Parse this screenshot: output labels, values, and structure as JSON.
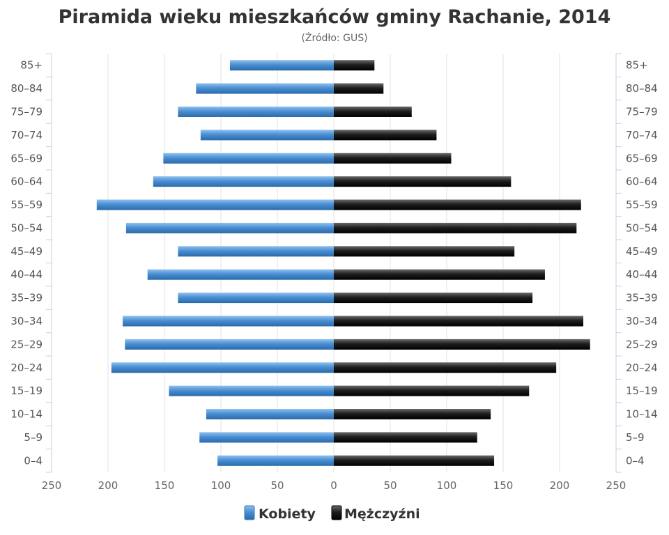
{
  "chart_data": {
    "type": "bar",
    "orientation": "horizontal",
    "layout": "population-pyramid",
    "title": "Piramida wieku mieszkańców gminy Rachanie, 2014",
    "subtitle": "(Źródło: GUS)",
    "categories": [
      "85+",
      "80–84",
      "75–79",
      "70–74",
      "65–69",
      "60–64",
      "55–59",
      "50–54",
      "45–49",
      "40–44",
      "35–39",
      "30–34",
      "25–29",
      "20–24",
      "15–19",
      "10–14",
      "5–9",
      "0–4"
    ],
    "x_ticks": [
      "250",
      "200",
      "150",
      "100",
      "50",
      "0",
      "50",
      "100",
      "150",
      "200",
      "250"
    ],
    "xlim": [
      -250,
      250
    ],
    "grid": true,
    "legend_position": "bottom",
    "series": [
      {
        "name": "Kobiety",
        "color": "#4a8fd4",
        "side": "left",
        "values": [
          92,
          122,
          138,
          118,
          151,
          160,
          210,
          184,
          138,
          165,
          138,
          187,
          185,
          197,
          146,
          113,
          119,
          103
        ]
      },
      {
        "name": "Mężczyźni",
        "color": "#1a1a1a",
        "side": "right",
        "values": [
          36,
          44,
          69,
          91,
          104,
          157,
          219,
          215,
          160,
          187,
          176,
          221,
          227,
          197,
          173,
          139,
          127,
          142
        ]
      }
    ]
  }
}
